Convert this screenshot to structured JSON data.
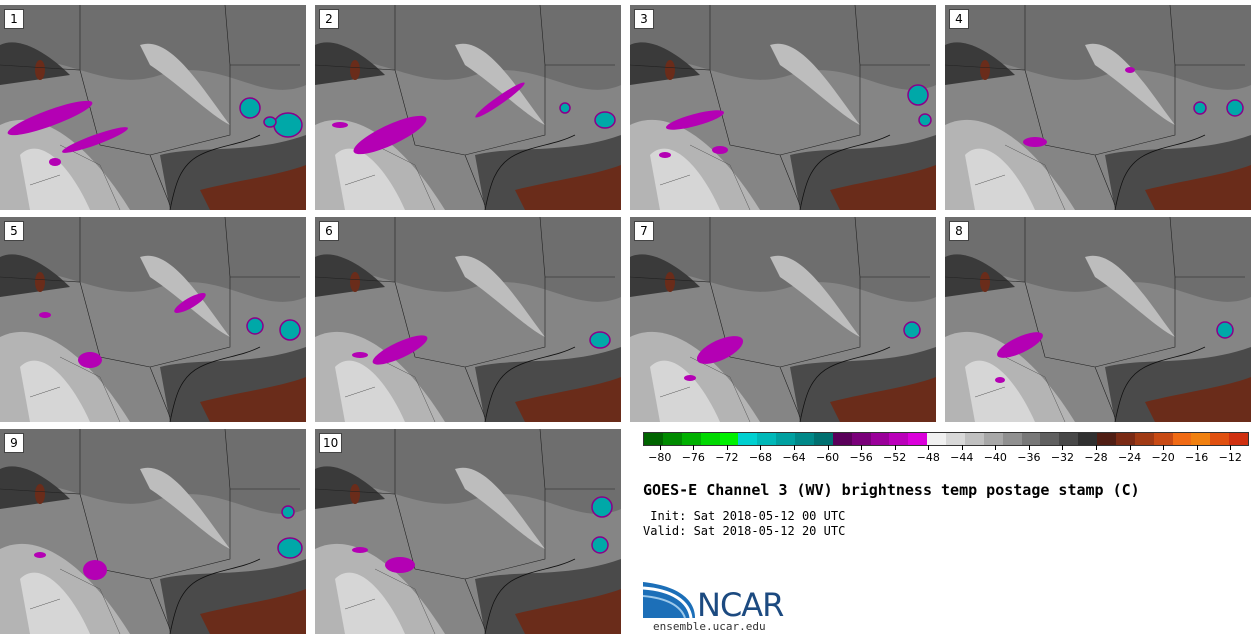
{
  "panels": [
    {
      "label": "1"
    },
    {
      "label": "2"
    },
    {
      "label": "3"
    },
    {
      "label": "4"
    },
    {
      "label": "5"
    },
    {
      "label": "6"
    },
    {
      "label": "7"
    },
    {
      "label": "8"
    },
    {
      "label": "9"
    },
    {
      "label": "10"
    }
  ],
  "colorbar": {
    "colors": [
      "#006400",
      "#008a00",
      "#00b000",
      "#00d800",
      "#00f000",
      "#00d0d0",
      "#00b8b8",
      "#00a0a0",
      "#008888",
      "#007070",
      "#5a005a",
      "#7a007a",
      "#9a009a",
      "#ba00ba",
      "#da00da",
      "#f0f0f0",
      "#d8d8d8",
      "#c0c0c0",
      "#a8a8a8",
      "#909090",
      "#787878",
      "#606060",
      "#484848",
      "#303030",
      "#501e14",
      "#7a2a14",
      "#a03a14",
      "#c84a14",
      "#f06a14",
      "#f08010",
      "#e05010",
      "#d03010"
    ],
    "tick_values": [
      -80,
      -76,
      -72,
      -68,
      -64,
      -60,
      -56,
      -52,
      -48,
      -44,
      -40,
      -36,
      -32,
      -28,
      -24,
      -20,
      -16,
      -12
    ],
    "tick_labels": [
      "−80",
      "−76",
      "−72",
      "−68",
      "−64",
      "−60",
      "−56",
      "−52",
      "−48",
      "−44",
      "−40",
      "−36",
      "−32",
      "−28",
      "−24",
      "−20",
      "−16",
      "−12"
    ],
    "range": [
      -82,
      -10
    ]
  },
  "title": "GOES-E Channel 3 (WV) brightness temp postage stamp (C)",
  "init": " Init: Sat 2018-05-12 00 UTC",
  "valid": "Valid: Sat 2018-05-12 20 UTC",
  "logo": {
    "text": "NCAR",
    "url": "ensemble.ucar.edu"
  }
}
